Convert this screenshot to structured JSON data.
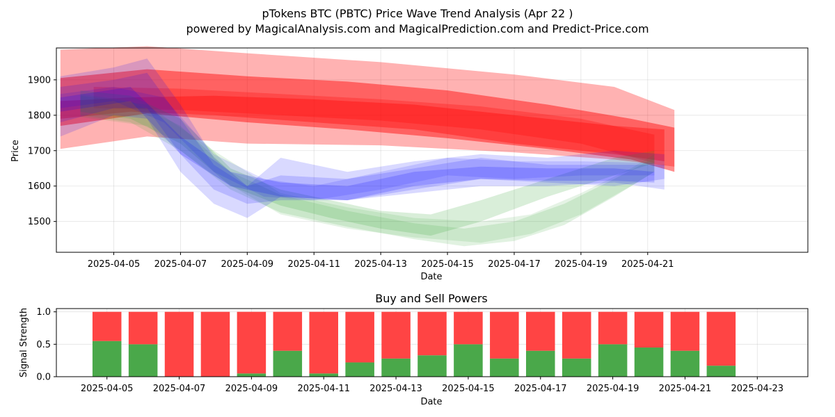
{
  "title": "pTokens BTC (PBTC) Price Wave Trend Analysis (Apr 22 )",
  "subtitle": "powered by MagicalAnalysis.com and MagicalPrediction.com and Predict-Price.com",
  "watermarks": [
    "MagicalAnalysis.com",
    "MagicalPrediction.com"
  ],
  "colors": {
    "red": "#ff0000",
    "green": "#2ca02c",
    "blue": "#0000ff",
    "bar_red": "#ff4444",
    "bar_green": "#4aa84a"
  },
  "chart_data": [
    {
      "type": "line",
      "title": "",
      "xlabel": "Date",
      "ylabel": "Price",
      "xlim": [
        -0.72,
        21.8
      ],
      "ylim": [
        1413,
        1990
      ],
      "x_tick_labels": [
        "2025-04-05",
        "2025-04-07",
        "2025-04-09",
        "2025-04-11",
        "2025-04-13",
        "2025-04-15",
        "2025-04-17",
        "2025-04-19",
        "2025-04-21"
      ],
      "x_tick_days": [
        1,
        3,
        5,
        7,
        9,
        11,
        13,
        15,
        17
      ],
      "y_ticks": [
        1500,
        1600,
        1700,
        1800,
        1900
      ],
      "grid": true,
      "series": [
        {
          "name": "red-wave-wide",
          "color": "red",
          "opacity": 0.3,
          "x": [
            -0.6,
            2,
            5,
            9,
            13,
            16,
            17.8
          ],
          "upper": [
            1985,
            1995,
            1975,
            1950,
            1915,
            1880,
            1815
          ],
          "lower": [
            1705,
            1740,
            1720,
            1715,
            1695,
            1675,
            1655
          ]
        },
        {
          "name": "red-wave-main",
          "color": "red",
          "opacity": 0.45,
          "x": [
            -0.6,
            2,
            5,
            8,
            11,
            14,
            16.5,
            17.8
          ],
          "upper": [
            1905,
            1930,
            1910,
            1895,
            1870,
            1830,
            1790,
            1765
          ],
          "lower": [
            1770,
            1805,
            1780,
            1760,
            1735,
            1705,
            1675,
            1640
          ]
        },
        {
          "name": "red-wave-inner",
          "color": "red",
          "opacity": 0.35,
          "x": [
            -0.6,
            1.5,
            4,
            7,
            10,
            13,
            16,
            17.5
          ],
          "upper": [
            1840,
            1850,
            1855,
            1845,
            1830,
            1800,
            1770,
            1760
          ],
          "lower": [
            1790,
            1810,
            1800,
            1780,
            1760,
            1720,
            1690,
            1670
          ]
        },
        {
          "name": "red-wave-short",
          "color": "red",
          "opacity": 0.25,
          "x": [
            0.4,
            3,
            6,
            9,
            12,
            15,
            17.2
          ],
          "upper": [
            1880,
            1875,
            1860,
            1845,
            1825,
            1790,
            1745
          ],
          "lower": [
            1820,
            1815,
            1800,
            1785,
            1760,
            1720,
            1665
          ]
        },
        {
          "name": "green-wave-1",
          "color": "green",
          "opacity": 0.18,
          "x": [
            0,
            1.5,
            3,
            4.5,
            6,
            7.5,
            9,
            10.5,
            12,
            14,
            16,
            17.2
          ],
          "upper": [
            1870,
            1855,
            1790,
            1650,
            1590,
            1560,
            1530,
            1520,
            1560,
            1620,
            1680,
            1700
          ],
          "lower": [
            1810,
            1790,
            1720,
            1600,
            1545,
            1510,
            1480,
            1460,
            1500,
            1570,
            1630,
            1665
          ]
        },
        {
          "name": "green-wave-2",
          "color": "green",
          "opacity": 0.14,
          "x": [
            0,
            1.5,
            3,
            4.5,
            6,
            8,
            10,
            11.5,
            13,
            14.5,
            16,
            17.2
          ],
          "upper": [
            1860,
            1840,
            1770,
            1640,
            1575,
            1530,
            1495,
            1480,
            1500,
            1550,
            1620,
            1680
          ],
          "lower": [
            1800,
            1780,
            1700,
            1590,
            1525,
            1485,
            1450,
            1430,
            1445,
            1490,
            1570,
            1640
          ]
        },
        {
          "name": "green-wave-3",
          "color": "green",
          "opacity": 0.12,
          "x": [
            0,
            2,
            4,
            6,
            8,
            10,
            12,
            13.5,
            15,
            16.5,
            17.2
          ],
          "upper": [
            1855,
            1830,
            1700,
            1580,
            1540,
            1510,
            1500,
            1520,
            1580,
            1650,
            1690
          ],
          "lower": [
            1795,
            1770,
            1630,
            1520,
            1480,
            1455,
            1440,
            1465,
            1520,
            1600,
            1640
          ]
        },
        {
          "name": "blue-wave-1",
          "color": "blue",
          "opacity": 0.15,
          "x": [
            -0.6,
            1,
            2,
            3,
            4,
            5,
            6,
            8,
            10,
            12,
            14,
            16,
            17.5
          ],
          "upper": [
            1910,
            1935,
            1960,
            1830,
            1680,
            1600,
            1680,
            1640,
            1670,
            1690,
            1680,
            1700,
            1690
          ],
          "lower": [
            1740,
            1800,
            1790,
            1640,
            1550,
            1510,
            1570,
            1560,
            1580,
            1600,
            1600,
            1610,
            1590
          ]
        },
        {
          "name": "blue-wave-2",
          "color": "blue",
          "opacity": 0.15,
          "x": [
            -0.6,
            1,
            2,
            3,
            4,
            5,
            6,
            8,
            10,
            12,
            14,
            16,
            17.5
          ],
          "upper": [
            1880,
            1900,
            1920,
            1790,
            1660,
            1600,
            1630,
            1620,
            1650,
            1680,
            1660,
            1660,
            1660
          ],
          "lower": [
            1780,
            1820,
            1820,
            1690,
            1590,
            1550,
            1560,
            1560,
            1590,
            1620,
            1610,
            1600,
            1620
          ]
        },
        {
          "name": "blue-wave-3",
          "color": "blue",
          "opacity": 0.12,
          "x": [
            -0.6,
            1,
            2.5,
            4,
            5.5,
            7,
            9,
            11,
            13,
            15,
            17.2
          ],
          "upper": [
            1860,
            1880,
            1850,
            1690,
            1620,
            1600,
            1640,
            1680,
            1670,
            1670,
            1665
          ],
          "lower": [
            1820,
            1840,
            1780,
            1640,
            1570,
            1560,
            1590,
            1630,
            1620,
            1630,
            1630
          ]
        },
        {
          "name": "blue-wave-4",
          "color": "blue",
          "opacity": 0.18,
          "x": [
            -0.6,
            1.5,
            3,
            4.5,
            6,
            8,
            10,
            12,
            14,
            16,
            17.2
          ],
          "upper": [
            1850,
            1880,
            1740,
            1640,
            1610,
            1600,
            1640,
            1655,
            1650,
            1650,
            1640
          ],
          "lower": [
            1810,
            1840,
            1690,
            1600,
            1570,
            1560,
            1600,
            1620,
            1615,
            1615,
            1610
          ]
        }
      ]
    },
    {
      "type": "bar",
      "stacked": true,
      "title": "Buy and Sell Powers",
      "xlabel": "Date",
      "ylabel": "Signal Strength",
      "xlim": [
        -1.4,
        19.4
      ],
      "ylim": [
        0,
        1.05
      ],
      "x_tick_labels": [
        "2025-04-05",
        "2025-04-07",
        "2025-04-09",
        "2025-04-11",
        "2025-04-13",
        "2025-04-15",
        "2025-04-17",
        "2025-04-19",
        "2025-04-21",
        "2025-04-23"
      ],
      "x_tick_days": [
        0,
        2,
        4,
        6,
        8,
        10,
        12,
        14,
        16,
        18
      ],
      "y_ticks": [
        0.0,
        0.5,
        1.0
      ],
      "y_tick_labels": [
        "0.0",
        "0.5",
        "1.0"
      ],
      "grid": true,
      "categories": [
        "2025-04-05",
        "2025-04-06",
        "2025-04-07",
        "2025-04-08",
        "2025-04-09",
        "2025-04-10",
        "2025-04-11",
        "2025-04-12",
        "2025-04-13",
        "2025-04-14",
        "2025-04-15",
        "2025-04-16",
        "2025-04-17",
        "2025-04-18",
        "2025-04-19",
        "2025-04-20",
        "2025-04-21",
        "2025-04-22"
      ],
      "series": [
        {
          "name": "Buy",
          "color": "bar_green",
          "values": [
            0.55,
            0.5,
            0.0,
            0.0,
            0.05,
            0.4,
            0.05,
            0.22,
            0.28,
            0.33,
            0.5,
            0.28,
            0.4,
            0.28,
            0.5,
            0.45,
            0.4,
            0.17
          ]
        },
        {
          "name": "Sell",
          "color": "bar_red",
          "values": [
            0.45,
            0.5,
            1.0,
            1.0,
            0.95,
            0.6,
            0.95,
            0.78,
            0.72,
            0.67,
            0.5,
            0.72,
            0.6,
            0.72,
            0.5,
            0.55,
            0.6,
            0.83
          ]
        }
      ]
    }
  ]
}
